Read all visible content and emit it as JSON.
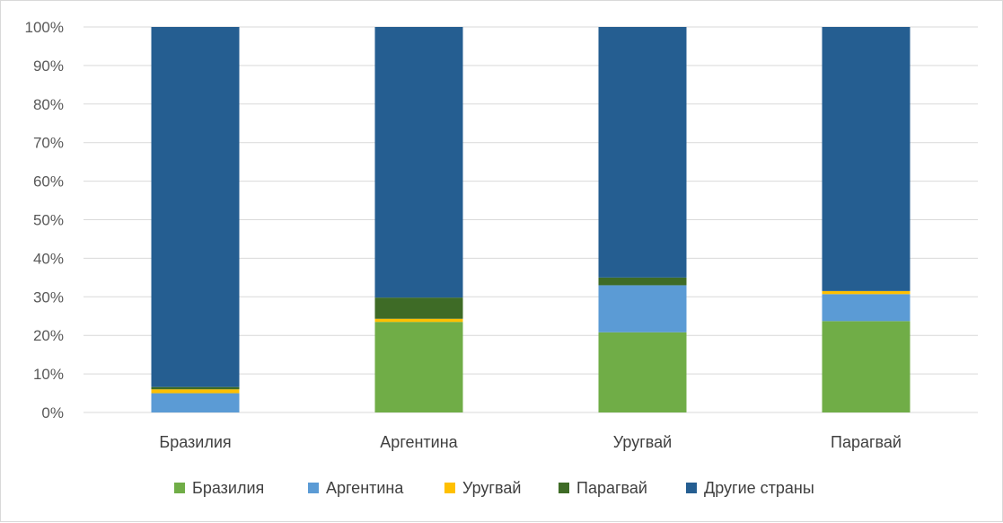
{
  "chart_data": {
    "type": "bar",
    "stacked": "percent",
    "categories": [
      "Бразилия",
      "Аргентина",
      "Уругвай",
      "Парагвай"
    ],
    "series": [
      {
        "name": "Бразилия",
        "color": "#70ad47",
        "values": [
          0,
          23.5,
          20.8,
          23.7
        ]
      },
      {
        "name": "Аргентина",
        "color": "#5b9bd5",
        "values": [
          5.0,
          0,
          12.2,
          7.0
        ]
      },
      {
        "name": "Уругвай",
        "color": "#ffc000",
        "values": [
          1.0,
          0.8,
          0,
          0.8
        ]
      },
      {
        "name": "Парагвай",
        "color": "#3e6b26",
        "values": [
          0.6,
          5.5,
          2.0,
          0
        ]
      },
      {
        "name": "Другие страны",
        "color": "#255e91",
        "values": [
          93.4,
          70.2,
          65.0,
          68.5
        ]
      }
    ],
    "ylim": [
      0,
      100
    ],
    "yticks": [
      "0%",
      "10%",
      "20%",
      "30%",
      "40%",
      "50%",
      "60%",
      "70%",
      "80%",
      "90%",
      "100%"
    ],
    "grid": true,
    "legend_position": "bottom"
  }
}
